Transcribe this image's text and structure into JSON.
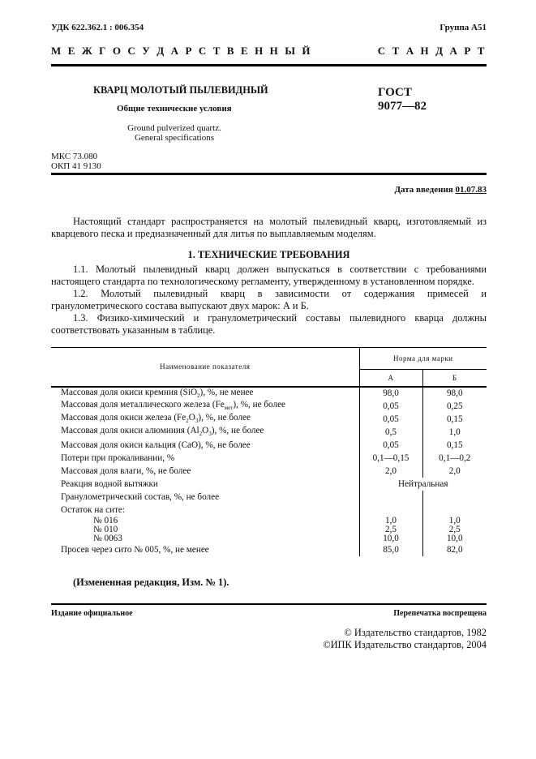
{
  "header": {
    "udk": "УДК 622.362.1 : 006.354",
    "group": "Группа А51",
    "banner_left": "М Е Ж Г О С У Д А Р С Т В Е Н Н Ы Й",
    "banner_right": "С Т А Н Д А Р Т"
  },
  "title": {
    "ru": "КВАРЦ МОЛОТЫЙ ПЫЛЕВИДНЫЙ",
    "subtitle": "Общие технические условия",
    "en1": "Ground pulverized quartz.",
    "en2": "General specifications",
    "gost": "ГОСТ",
    "number": "9077—82"
  },
  "codes": {
    "mks": "МКС 73.080",
    "okp": "ОКП 41 9130"
  },
  "date": {
    "label": "Дата введения ",
    "value": "01.07.83"
  },
  "intro": "Настоящий стандарт распространяется на молотый пылевидный кварц, изготовляемый из кварцевого песка и предназначенный для литья по выплавляемым моделям.",
  "section1": {
    "heading": "1. ТЕХНИЧЕСКИЕ ТРЕБОВАНИЯ",
    "p1": "1.1. Молотый пылевидный кварц должен выпускаться в соответствии с требованиями настоящего стандарта по технологическому регламенту, утвержденному в установленном порядке.",
    "p2": "1.2. Молотый пылевидный кварц в зависимости от содержания примесей и гранулометрического состава выпускают двух марок: А и Б.",
    "p3": "1.3. Физико-химический и гранулометрический составы пылевидного кварца должны соответствовать указанным в таблице."
  },
  "table": {
    "col_name": "Наименование показателя",
    "col_norm": "Норма для марки",
    "col_a": "А",
    "col_b": "Б",
    "rows": [
      {
        "pre": "Массовая доля окиси кремния (SiO",
        "sub": "2",
        "post": "), %, не менее",
        "a": "98,0",
        "b": "98,0"
      },
      {
        "pre": "Массовая доля металлического железа (Fe",
        "sub": "мет",
        "post": "), %, не более",
        "a": "0,05",
        "b": "0,25"
      },
      {
        "pre": "Массовая доля окиси железа (Fe",
        "sub": "2",
        "mid": "O",
        "sub2": "3",
        "post": "), %, не более",
        "a": "0,05",
        "b": "0,15"
      },
      {
        "pre": "Массовая доля окиси алюминия (Al",
        "sub": "2",
        "mid": "O",
        "sub2": "3",
        "post": "), %, не более",
        "a": "0,5",
        "b": "1,0"
      },
      {
        "pre": "Массовая доля окиси кальция (CaO), %, не более",
        "a": "0,05",
        "b": "0,15"
      },
      {
        "pre": "Потери при прокаливании, %",
        "a": "0,1—0,15",
        "b": "0,1—0,2"
      },
      {
        "pre": "Массовая доля влаги, %, не более",
        "a": "2,0",
        "b": "2,0"
      },
      {
        "pre": "Реакция водной вытяжки",
        "merged": "Нейтральная"
      },
      {
        "pre": "Гранулометрический состав, %, не более"
      },
      {
        "pre": "Остаток на сите:"
      },
      {
        "pre": "№ 016",
        "a": "1,0",
        "b": "1,0",
        "sieve": true
      },
      {
        "pre": "№ 010",
        "a": "2,5",
        "b": "2,5",
        "sieve": true
      },
      {
        "pre": "№ 0063",
        "a": "10,0",
        "b": "10,0",
        "sieve": true
      },
      {
        "pre": "Просев через сито № 005, %, не менее",
        "a": "85,0",
        "b": "82,0"
      }
    ]
  },
  "amendment": "(Измененная редакция, Изм. № 1).",
  "footer": {
    "official": "Издание официальное",
    "reprint": "Перепечатка воспрещена",
    "copy1": "© Издательство стандартов, 1982",
    "copy2": "©ИПК Издательство стандартов, 2004"
  }
}
